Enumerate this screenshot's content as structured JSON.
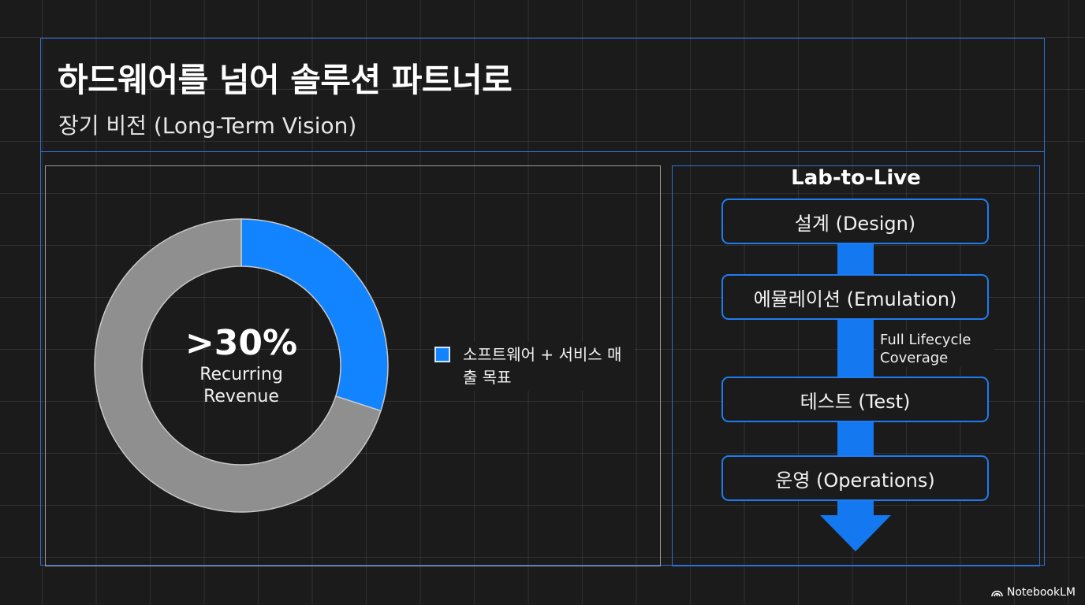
{
  "title": "하드웨어를 넘어 솔루션 파트너로",
  "subtitle": "장기 비전 (Long-Term Vision)",
  "chart_data": {
    "type": "pie",
    "donut": true,
    "slices": [
      {
        "label": "소프트웨어 + 서비스 매출 목표",
        "value": 30,
        "color": "#1284ff"
      },
      {
        "label": "",
        "value": 70,
        "color": "#8f8f8f"
      }
    ],
    "center_value": ">30%",
    "center_caption": "Recurring Revenue",
    "legend": "right"
  },
  "legend": {
    "label": "소프트웨어 + 서비스 매출 목표",
    "color": "#1284ff"
  },
  "lifecycle": {
    "title": "Lab-to-Live",
    "steps": [
      {
        "label": "설계 (Design)"
      },
      {
        "label": "에뮬레이션 (Emulation)"
      },
      {
        "label": "테스트 (Test)"
      },
      {
        "label": "운영 (Operations)"
      }
    ],
    "note": "Full Lifecycle Coverage",
    "arrow_color": "#1478f0"
  },
  "brand": {
    "name": "NotebookLM",
    "icon": "notebooklm-logo-icon"
  },
  "colors": {
    "background": "#1b1b1b",
    "accent": "#1284ff",
    "frame": "#2f6fd0",
    "neutral": "#8f8f8f"
  }
}
